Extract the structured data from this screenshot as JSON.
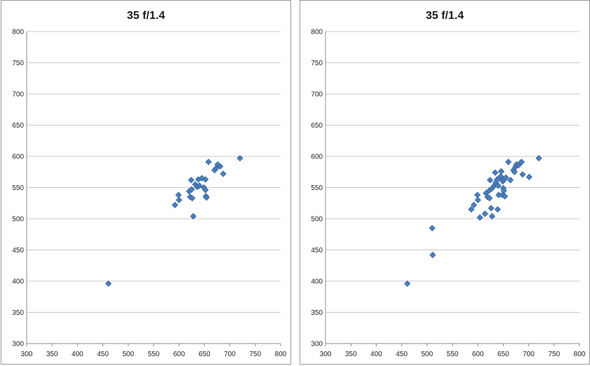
{
  "colors": {
    "marker": "#4a7ebb",
    "marker_edge": "#2f5f99",
    "grid": "#c8c8c8"
  },
  "chart_data": [
    {
      "type": "scatter",
      "title": "35 f/1.4",
      "xlabel": "",
      "ylabel": "",
      "xlim": [
        300,
        800
      ],
      "ylim": [
        300,
        800
      ],
      "xticks": [
        300,
        350,
        400,
        450,
        500,
        550,
        600,
        650,
        700,
        750,
        800
      ],
      "yticks": [
        300,
        350,
        400,
        450,
        500,
        550,
        600,
        650,
        700,
        750,
        800
      ],
      "grid": true,
      "marker": "diamond",
      "points": [
        [
          461,
          396
        ],
        [
          592,
          522
        ],
        [
          599,
          538
        ],
        [
          600,
          530
        ],
        [
          620,
          544
        ],
        [
          622,
          535
        ],
        [
          624,
          562
        ],
        [
          625,
          547
        ],
        [
          626,
          533
        ],
        [
          628,
          504
        ],
        [
          632,
          555
        ],
        [
          636,
          551
        ],
        [
          638,
          563
        ],
        [
          640,
          553
        ],
        [
          645,
          565
        ],
        [
          649,
          550
        ],
        [
          652,
          546
        ],
        [
          652,
          563
        ],
        [
          653,
          536
        ],
        [
          654,
          534
        ],
        [
          658,
          591
        ],
        [
          670,
          578
        ],
        [
          673,
          581
        ],
        [
          676,
          587
        ],
        [
          681,
          584
        ],
        [
          687,
          572
        ],
        [
          720,
          597
        ]
      ]
    },
    {
      "type": "scatter",
      "title": "35 f/1.4",
      "xlabel": "",
      "ylabel": "",
      "xlim": [
        300,
        800
      ],
      "ylim": [
        300,
        800
      ],
      "xticks": [
        300,
        350,
        400,
        450,
        500,
        550,
        600,
        650,
        700,
        750,
        800
      ],
      "yticks": [
        300,
        350,
        400,
        450,
        500,
        550,
        600,
        650,
        700,
        750,
        800
      ],
      "grid": true,
      "marker": "diamond",
      "points": [
        [
          461,
          396
        ],
        [
          510,
          485
        ],
        [
          511,
          442
        ],
        [
          587,
          515
        ],
        [
          592,
          522
        ],
        [
          599,
          538
        ],
        [
          600,
          530
        ],
        [
          604,
          502
        ],
        [
          614,
          508
        ],
        [
          616,
          541
        ],
        [
          619,
          535
        ],
        [
          622,
          545
        ],
        [
          623,
          533
        ],
        [
          624,
          562
        ],
        [
          626,
          517
        ],
        [
          627,
          548
        ],
        [
          628,
          504
        ],
        [
          632,
          553
        ],
        [
          634,
          574
        ],
        [
          635,
          558
        ],
        [
          638,
          563
        ],
        [
          639,
          515
        ],
        [
          640,
          553
        ],
        [
          641,
          538
        ],
        [
          642,
          565
        ],
        [
          645,
          568
        ],
        [
          646,
          576
        ],
        [
          648,
          538
        ],
        [
          649,
          560
        ],
        [
          650,
          549
        ],
        [
          651,
          545
        ],
        [
          652,
          563
        ],
        [
          653,
          536
        ],
        [
          655,
          566
        ],
        [
          660,
          591
        ],
        [
          664,
          562
        ],
        [
          670,
          578
        ],
        [
          672,
          575
        ],
        [
          674,
          583
        ],
        [
          676,
          587
        ],
        [
          680,
          586
        ],
        [
          683,
          589
        ],
        [
          686,
          591
        ],
        [
          688,
          571
        ],
        [
          701,
          567
        ],
        [
          720,
          597
        ]
      ]
    }
  ]
}
